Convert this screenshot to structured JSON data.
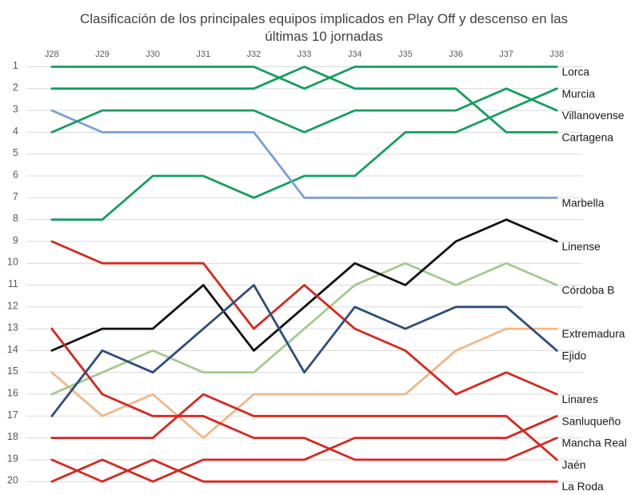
{
  "chart_data": {
    "type": "line",
    "subtype": "bump-ranking",
    "title": "Clasificación de los principales equipos implicados en Play Off y descenso en las últimas 10 jornadas",
    "title_lines": [
      "Clasificación de los principales equipos implicados en Play Off y descenso en las",
      "últimas 10 jornadas"
    ],
    "x_categories": [
      "J28",
      "J29",
      "J30",
      "J31",
      "J32",
      "J33",
      "J34",
      "J35",
      "J36",
      "J37",
      "J38"
    ],
    "xlabel": "",
    "ylabel": "",
    "y_axis": {
      "min": 1,
      "max": 20,
      "tick_step": 1,
      "inverted": true
    },
    "grid": true,
    "legend_position": "labels-at-line-end-right",
    "series": [
      {
        "name": "Lorca",
        "color": "#149e5c",
        "values": [
          1,
          1,
          1,
          1,
          1,
          2,
          1,
          1,
          1,
          1,
          1
        ]
      },
      {
        "name": "Cartagena",
        "color": "#149e5c",
        "values": [
          2,
          2,
          2,
          2,
          2,
          1,
          2,
          2,
          2,
          4,
          4
        ]
      },
      {
        "name": "Murcia",
        "color": "#149e5c",
        "values": [
          8,
          8,
          6,
          6,
          7,
          6,
          6,
          4,
          4,
          3,
          2
        ]
      },
      {
        "name": "Marbella",
        "color": "#7aa0d4",
        "values": [
          3,
          4,
          4,
          4,
          4,
          7,
          7,
          7,
          7,
          7,
          7
        ]
      },
      {
        "name": "Villanovense",
        "color": "#149e5c",
        "values": [
          4,
          3,
          3,
          3,
          3,
          4,
          3,
          3,
          3,
          2,
          3
        ]
      },
      {
        "name": "Extremadura",
        "color": "#f1b789",
        "values": [
          15,
          17,
          16,
          18,
          16,
          16,
          16,
          16,
          14,
          13,
          13
        ]
      },
      {
        "name": "Córdoba B",
        "color": "#a6c98e",
        "values": [
          16,
          15,
          14,
          15,
          15,
          13,
          11,
          10,
          11,
          10,
          11
        ]
      },
      {
        "name": "Linense",
        "color": "#111111",
        "values": [
          14,
          13,
          13,
          11,
          14,
          12,
          10,
          11,
          9,
          8,
          9
        ]
      },
      {
        "name": "Linares",
        "color": "#d8261d",
        "values": [
          9,
          10,
          10,
          10,
          13,
          11,
          13,
          14,
          16,
          15,
          16
        ]
      },
      {
        "name": "Mancha Real",
        "color": "#d8261d",
        "values": [
          13,
          16,
          17,
          17,
          18,
          18,
          19,
          19,
          19,
          19,
          18
        ]
      },
      {
        "name": "Jaén",
        "color": "#d8261d",
        "values": [
          18,
          18,
          18,
          16,
          17,
          17,
          17,
          17,
          17,
          17,
          19
        ]
      },
      {
        "name": "Sanluqueño",
        "color": "#d8261d",
        "values": [
          20,
          19,
          20,
          19,
          19,
          19,
          18,
          18,
          18,
          18,
          17
        ]
      },
      {
        "name": "La Roda",
        "color": "#d8261d",
        "values": [
          19,
          20,
          19,
          20,
          20,
          20,
          20,
          20,
          20,
          20,
          20
        ]
      },
      {
        "name": "Ejido",
        "color": "#2d4d7c",
        "values": [
          17,
          14,
          15,
          13,
          11,
          15,
          12,
          13,
          12,
          12,
          14
        ]
      }
    ],
    "styles": {
      "background": "#ffffff",
      "grid_color": "#d9d9d9",
      "title_color": "#404040",
      "axis_label_color": "#595959",
      "series_label_color": "#1a1a1a"
    }
  }
}
